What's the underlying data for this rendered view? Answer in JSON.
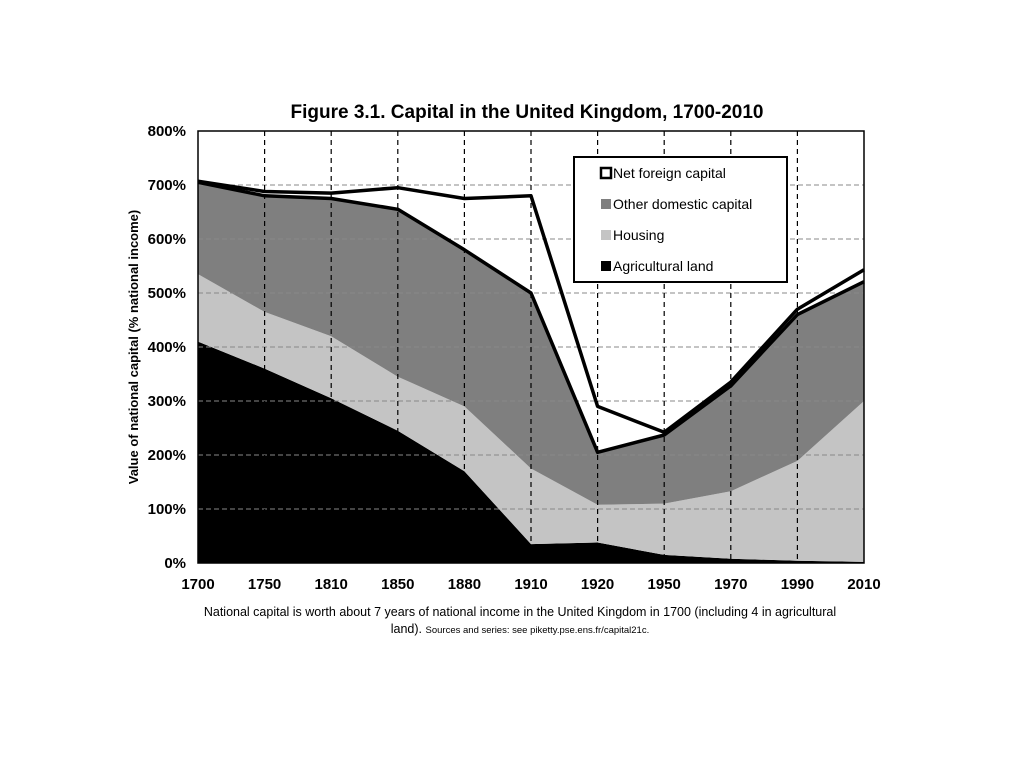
{
  "chart_data": {
    "type": "area",
    "title": "Figure 3.1. Capital in the United Kingdom, 1700-2010",
    "ylabel": "Value of national capital (% national income)",
    "xlabel": "",
    "x": [
      1700,
      1750,
      1810,
      1850,
      1880,
      1910,
      1920,
      1950,
      1970,
      1990,
      2010
    ],
    "x_tick_labels": [
      "1700",
      "1750",
      "1810",
      "1850",
      "1880",
      "1910",
      "1920",
      "1950",
      "1970",
      "1990",
      "2010"
    ],
    "y_tick_labels": [
      "0%",
      "100%",
      "200%",
      "300%",
      "400%",
      "500%",
      "600%",
      "700%",
      "800%"
    ],
    "ylim": [
      0,
      800
    ],
    "y_unit": "%",
    "stacked": true,
    "grid": true,
    "legend_position": "top-right",
    "series": [
      {
        "name": "Agricultural land",
        "values": [
          410,
          360,
          305,
          245,
          170,
          35,
          38,
          15,
          8,
          4,
          2
        ],
        "color": "#000000"
      },
      {
        "name": "Housing",
        "values": [
          125,
          105,
          115,
          100,
          120,
          140,
          70,
          95,
          125,
          185,
          298
        ],
        "color": "#c4c4c4"
      },
      {
        "name": "Other domestic capital",
        "values": [
          170,
          215,
          255,
          310,
          290,
          325,
          97,
          127,
          195,
          271,
          221
        ],
        "color": "#7f7f7f"
      },
      {
        "name": "Net foreign capital",
        "values": [
          2,
          8,
          10,
          40,
          95,
          180,
          85,
          5,
          7,
          10,
          22
        ],
        "color": "#ffffff"
      }
    ],
    "legend_order": [
      "Net foreign capital",
      "Other domestic capital",
      "Housing",
      "Agricultural land"
    ]
  },
  "caption": {
    "main": "National capital is worth about 7 years of national income in the United Kingdom in 1700 (including 4 in agricultural land).",
    "source": "Sources and series: see piketty.pse.ens.fr/capital21c."
  }
}
